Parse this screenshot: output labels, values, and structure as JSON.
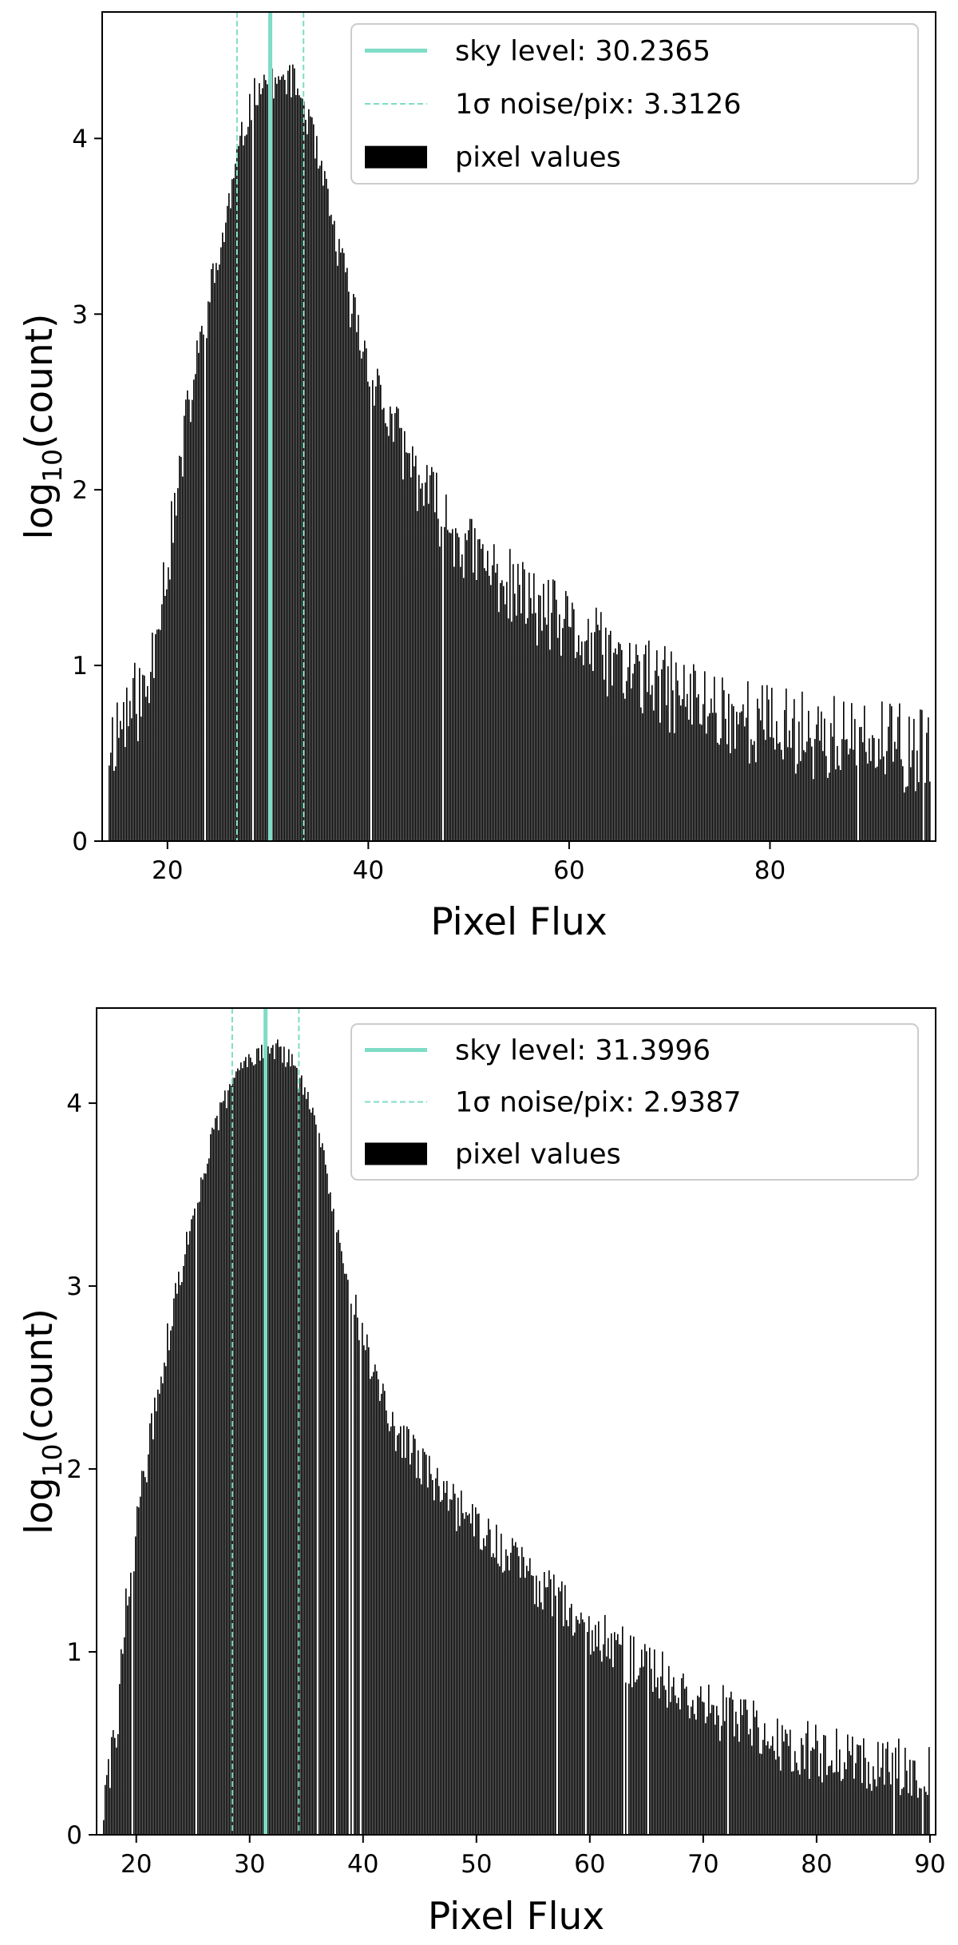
{
  "chart_data": [
    {
      "type": "bar",
      "xlabel": "Pixel Flux",
      "ylabel_main": "log",
      "ylabel_sub": "10",
      "ylabel_tail": "(count)",
      "xlim": [
        13.5,
        96.5
      ],
      "ylim": [
        0,
        4.72
      ],
      "xticks": [
        20,
        40,
        60,
        80
      ],
      "yticks": [
        0,
        1,
        2,
        3,
        4
      ],
      "grid": false,
      "legend_position": "top-right",
      "sky_level": 30.2365,
      "noise_sigma": 3.3126,
      "legend": [
        {
          "label": "sky level: 30.2365",
          "style": "solid-line"
        },
        {
          "label": "1σ noise/pix: 3.3126",
          "style": "dashed-line"
        },
        {
          "label": "pixel values",
          "style": "filled-patch"
        }
      ],
      "series": [
        {
          "name": "pixel values",
          "x": [
            14,
            16,
            18,
            19,
            20,
            21,
            22,
            23,
            24,
            25,
            26,
            27,
            28,
            29,
            30,
            31,
            32,
            33,
            34,
            35,
            36,
            37,
            38,
            40,
            42,
            45,
            48,
            50,
            55,
            60,
            65,
            70,
            75,
            80,
            85,
            90,
            96
          ],
          "y": [
            0.55,
            0.75,
            0.85,
            1.35,
            1.6,
            2.0,
            2.45,
            2.75,
            3.05,
            3.3,
            3.6,
            3.9,
            4.15,
            4.3,
            4.35,
            4.3,
            4.35,
            4.28,
            4.1,
            3.85,
            3.6,
            3.35,
            3.1,
            2.7,
            2.4,
            2.05,
            1.8,
            1.65,
            1.4,
            1.2,
            1.0,
            0.85,
            0.75,
            0.65,
            0.6,
            0.55,
            0.5
          ],
          "noise": 0.28,
          "seed": 11
        }
      ],
      "line_color": "#7fdcc6",
      "bar_color": "#000000"
    },
    {
      "type": "bar",
      "xlabel": "Pixel Flux",
      "ylabel_main": "log",
      "ylabel_sub": "10",
      "ylabel_tail": "(count)",
      "xlim": [
        16.5,
        90.5
      ],
      "ylim": [
        0,
        4.52
      ],
      "xticks": [
        20,
        30,
        40,
        50,
        60,
        70,
        80,
        90
      ],
      "yticks": [
        0,
        1,
        2,
        3,
        4
      ],
      "grid": false,
      "legend_position": "top-right",
      "sky_level": 31.3996,
      "noise_sigma": 2.9387,
      "legend": [
        {
          "label": "sky level: 31.3996",
          "style": "solid-line"
        },
        {
          "label": "1σ noise/pix: 2.9387",
          "style": "dashed-line"
        },
        {
          "label": "pixel values",
          "style": "filled-patch"
        }
      ],
      "series": [
        {
          "name": "pixel values",
          "x": [
            17,
            18,
            19,
            20,
            21,
            22,
            23,
            24,
            25,
            26,
            27,
            28,
            29,
            30,
            31,
            32,
            33,
            34,
            35,
            36,
            37,
            38,
            39,
            40,
            42,
            44,
            46,
            48,
            50,
            55,
            60,
            65,
            70,
            75,
            80,
            85,
            90
          ],
          "y": [
            0.15,
            0.45,
            1.2,
            1.7,
            2.1,
            2.45,
            2.8,
            3.1,
            3.4,
            3.65,
            3.88,
            4.05,
            4.18,
            4.26,
            4.3,
            4.3,
            4.27,
            4.18,
            4.02,
            3.8,
            3.55,
            3.25,
            2.95,
            2.7,
            2.3,
            2.1,
            1.95,
            1.8,
            1.68,
            1.4,
            1.12,
            0.9,
            0.72,
            0.55,
            0.45,
            0.4,
            0.35
          ],
          "noise": 0.18,
          "seed": 29
        }
      ],
      "line_color": "#7fdcc6",
      "bar_color": "#000000"
    }
  ]
}
